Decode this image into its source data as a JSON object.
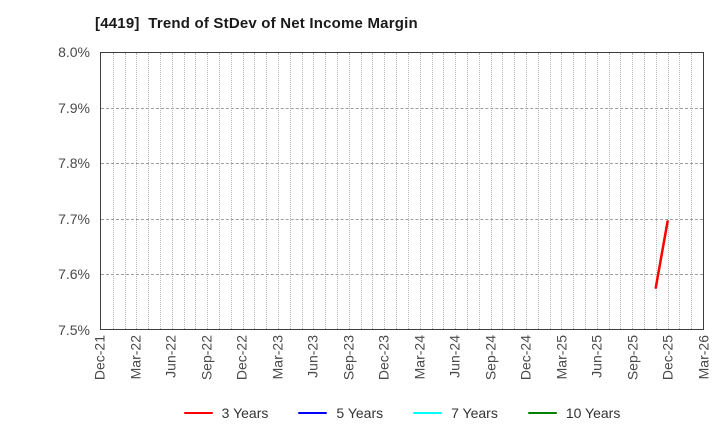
{
  "title": "[4419]  Trend of StDev of Net Income Margin",
  "chart_data": {
    "type": "line",
    "title": "[4419]  Trend of StDev of Net Income Margin",
    "xlabel": "",
    "ylabel": "",
    "ylim": [
      7.5,
      8.0
    ],
    "y_unit": "%",
    "grid": "on",
    "legend_position": "bottom",
    "months_total": 51,
    "x_range": [
      "Dec-21",
      "Mar-26"
    ],
    "y_ticks": [
      {
        "label": "8.0%",
        "value": 8.0
      },
      {
        "label": "7.9%",
        "value": 7.9
      },
      {
        "label": "7.8%",
        "value": 7.8
      },
      {
        "label": "7.7%",
        "value": 7.7
      },
      {
        "label": "7.6%",
        "value": 7.6
      },
      {
        "label": "7.5%",
        "value": 7.5
      }
    ],
    "y_gridline_values": [
      7.9,
      7.8,
      7.7,
      7.6
    ],
    "x_ticks": [
      {
        "label": "Dec-21",
        "month_index": 0
      },
      {
        "label": "Mar-22",
        "month_index": 3
      },
      {
        "label": "Jun-22",
        "month_index": 6
      },
      {
        "label": "Sep-22",
        "month_index": 9
      },
      {
        "label": "Dec-22",
        "month_index": 12
      },
      {
        "label": "Mar-23",
        "month_index": 15
      },
      {
        "label": "Jun-23",
        "month_index": 18
      },
      {
        "label": "Sep-23",
        "month_index": 21
      },
      {
        "label": "Dec-23",
        "month_index": 24
      },
      {
        "label": "Mar-24",
        "month_index": 27
      },
      {
        "label": "Jun-24",
        "month_index": 30
      },
      {
        "label": "Sep-24",
        "month_index": 33
      },
      {
        "label": "Dec-24",
        "month_index": 36
      },
      {
        "label": "Mar-25",
        "month_index": 39
      },
      {
        "label": "Jun-25",
        "month_index": 42
      },
      {
        "label": "Sep-25",
        "month_index": 45
      },
      {
        "label": "Dec-25",
        "month_index": 48
      },
      {
        "label": "Mar-26",
        "month_index": 51
      }
    ],
    "series": [
      {
        "name": "3 Years",
        "color": "#ff0000",
        "points": [
          {
            "x": "Nov-25",
            "month_index": 47,
            "value": 7.575
          },
          {
            "x": "Dec-25",
            "month_index": 48,
            "value": 7.695
          }
        ]
      },
      {
        "name": "5 Years",
        "color": "#0000ff",
        "points": []
      },
      {
        "name": "7 Years",
        "color": "#00ffff",
        "points": []
      },
      {
        "name": "10 Years",
        "color": "#008000",
        "points": []
      }
    ]
  },
  "colors": {
    "axis_frame": "#3d3d3d",
    "grid_vertical": "#b5b5b5",
    "grid_horizontal": "#9e9e9e",
    "tick_label": "#4a4a4a",
    "title": "#1a1a1a",
    "background": "#ffffff"
  }
}
